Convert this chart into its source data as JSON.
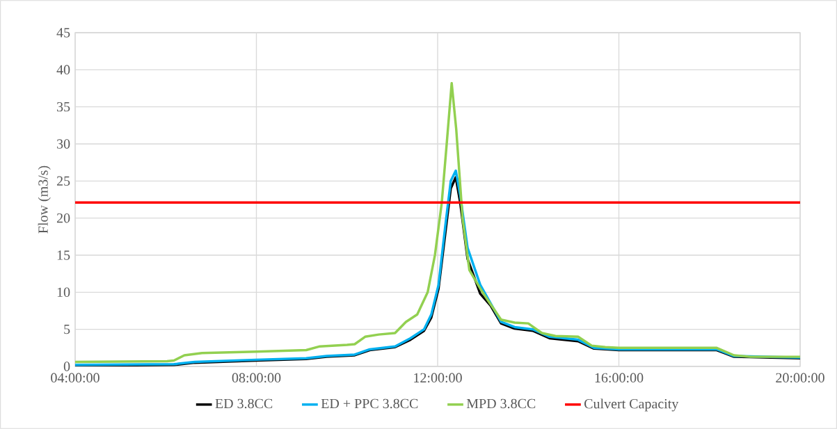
{
  "chart_data": {
    "type": "line",
    "ylabel": "Flow (m3/s)",
    "xlim": [
      4,
      20
    ],
    "xticks": [
      {
        "value": 4,
        "label": "04:00:00"
      },
      {
        "value": 8,
        "label": "08:00:00"
      },
      {
        "value": 12,
        "label": "12:00:00"
      },
      {
        "value": 16,
        "label": "16:00:00"
      },
      {
        "value": 20,
        "label": "20:00:00"
      }
    ],
    "ylim": [
      0,
      45
    ],
    "yticks": [
      0,
      5,
      10,
      15,
      20,
      25,
      30,
      35,
      40,
      45
    ],
    "grid": true,
    "legend": "bottom",
    "marker": "none",
    "line_style": "solid",
    "series": [
      {
        "name": "ED 3.8CC",
        "color": "#000000",
        "x": [
          4,
          6.18,
          6.64,
          8,
          9.1,
          9.55,
          10.17,
          10.5,
          11.06,
          11.4,
          11.7,
          11.86,
          12.02,
          12.17,
          12.29,
          12.4,
          12.5,
          12.66,
          12.94,
          13.17,
          13.4,
          13.7,
          14.1,
          14.47,
          15.1,
          15.45,
          16,
          18.16,
          18.54,
          20
        ],
        "values": [
          0.1,
          0.2,
          0.5,
          0.8,
          1.0,
          1.3,
          1.5,
          2.2,
          2.6,
          3.6,
          4.8,
          6.6,
          10.5,
          18,
          24,
          25.5,
          22,
          14.5,
          9.8,
          8.2,
          5.8,
          5.1,
          4.8,
          3.8,
          3.4,
          2.4,
          2.2,
          2.2,
          1.3,
          1.1
        ]
      },
      {
        "name": "ED + PPC 3.8CC",
        "color": "#00b0f0",
        "x": [
          4,
          6.18,
          6.64,
          8,
          9.1,
          9.55,
          10.17,
          10.5,
          11.06,
          11.4,
          11.7,
          11.86,
          12.02,
          12.17,
          12.29,
          12.4,
          12.5,
          12.66,
          12.94,
          13.17,
          13.4,
          13.7,
          14.1,
          14.47,
          15.1,
          15.45,
          16,
          18.16,
          18.54,
          20
        ],
        "values": [
          0.2,
          0.3,
          0.6,
          0.9,
          1.1,
          1.4,
          1.6,
          2.3,
          2.7,
          3.8,
          5.0,
          7.0,
          11,
          19,
          25,
          26.4,
          23,
          16,
          11,
          8.5,
          6.0,
          5.3,
          5.0,
          4.0,
          3.6,
          2.5,
          2.3,
          2.3,
          1.4,
          1.2
        ]
      },
      {
        "name": "MPD 3.8CC",
        "color": "#92d050",
        "x": [
          4,
          6.03,
          6.18,
          6.41,
          6.8,
          8,
          9.1,
          9.4,
          10,
          10.17,
          10.4,
          10.7,
          11.06,
          11.3,
          11.55,
          11.78,
          11.94,
          12.09,
          12.2,
          12.31,
          12.41,
          12.55,
          12.7,
          12.94,
          13.1,
          13.4,
          13.7,
          14,
          14.3,
          14.6,
          15.1,
          15.4,
          15.7,
          16,
          17.7,
          18.16,
          18.54,
          18.9,
          20
        ],
        "values": [
          0.6,
          0.7,
          0.8,
          1.5,
          1.8,
          2.0,
          2.2,
          2.7,
          2.9,
          3.0,
          4.0,
          4.3,
          4.5,
          6.0,
          7.0,
          10,
          15,
          22,
          30,
          38.2,
          32,
          20,
          13,
          10.5,
          9,
          6.3,
          5.9,
          5.8,
          4.5,
          4.1,
          4.0,
          2.8,
          2.6,
          2.5,
          2.5,
          2.5,
          1.5,
          1.3,
          1.3
        ]
      },
      {
        "name": "Culvert Capacity",
        "color": "#ff0000",
        "x": [
          4,
          20
        ],
        "values": [
          22.1,
          22.1
        ]
      }
    ]
  }
}
